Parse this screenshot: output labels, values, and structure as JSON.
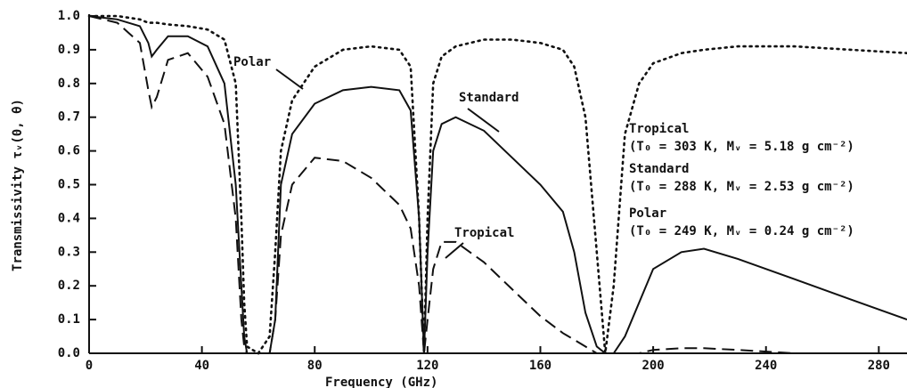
{
  "chart_data": {
    "type": "line",
    "xlabel": "Frequency (GHz)",
    "ylabel": "Transmissivity τᵥ(0, θ)",
    "x": [
      0,
      10,
      18,
      21,
      22.2,
      24,
      28,
      35,
      42,
      48,
      52,
      54,
      55,
      56,
      60,
      64,
      66,
      68,
      72,
      80,
      90,
      100,
      110,
      114,
      117,
      118.75,
      120,
      122,
      125,
      130,
      140,
      150,
      160,
      168,
      172,
      176,
      180,
      183,
      186,
      190,
      195,
      200,
      210,
      218,
      230,
      250,
      270,
      290
    ],
    "series": [
      {
        "name": "Standard",
        "color": "#111111",
        "style": "solid",
        "values": [
          1,
          0.99,
          0.97,
          0.92,
          0.88,
          0.9,
          0.94,
          0.94,
          0.91,
          0.8,
          0.5,
          0.2,
          0.05,
          0,
          0,
          0,
          0.1,
          0.5,
          0.65,
          0.74,
          0.78,
          0.79,
          0.78,
          0.72,
          0.4,
          0,
          0.3,
          0.6,
          0.68,
          0.7,
          0.66,
          0.58,
          0.5,
          0.42,
          0.3,
          0.12,
          0.02,
          0,
          0,
          0.05,
          0.15,
          0.25,
          0.3,
          0.31,
          0.28,
          0.22,
          0.16,
          0.1
        ]
      },
      {
        "name": "Tropical",
        "color": "#111111",
        "style": "dashed",
        "values": [
          1,
          0.98,
          0.92,
          0.78,
          0.73,
          0.76,
          0.87,
          0.89,
          0.82,
          0.68,
          0.4,
          0.1,
          0.02,
          0,
          0,
          0,
          0.1,
          0.35,
          0.5,
          0.58,
          0.57,
          0.52,
          0.44,
          0.37,
          0.2,
          0,
          0.1,
          0.25,
          0.33,
          0.33,
          0.27,
          0.19,
          0.11,
          0.06,
          0.04,
          0.02,
          0,
          0,
          0,
          0,
          0,
          0.01,
          0.015,
          0.015,
          0.01,
          0,
          0,
          0
        ]
      },
      {
        "name": "Polar",
        "color": "#111111",
        "style": "dotted",
        "values": [
          1,
          1,
          0.99,
          0.98,
          0.98,
          0.98,
          0.975,
          0.97,
          0.96,
          0.93,
          0.8,
          0.4,
          0.15,
          0.02,
          0,
          0.05,
          0.3,
          0.6,
          0.75,
          0.85,
          0.9,
          0.91,
          0.9,
          0.85,
          0.4,
          0,
          0.4,
          0.8,
          0.88,
          0.91,
          0.93,
          0.93,
          0.92,
          0.9,
          0.85,
          0.7,
          0.3,
          0,
          0.2,
          0.65,
          0.8,
          0.86,
          0.89,
          0.9,
          0.91,
          0.91,
          0.9,
          0.89
        ]
      }
    ],
    "annotations": [
      "(T₀ = 303 K, Mᵥ = 5.18 g cm⁻²)",
      "(T₀ = 288 K, Mᵥ = 2.53 g cm⁻²)",
      "(T₀ = 249 K, Mᵥ = 0.24 g cm⁻²)"
    ],
    "xlim": [
      0,
      290
    ],
    "xticks": [
      0,
      40,
      80,
      120,
      160,
      200,
      240,
      280
    ],
    "ylim": [
      0,
      1
    ],
    "yticks": [
      {
        "value": 0,
        "label": "0.0"
      },
      0.1,
      0.2,
      0.3,
      0.4,
      0.5,
      0.6,
      0.7,
      0.8,
      0.9,
      {
        "value": 1,
        "label": "1.0"
      }
    ],
    "grid": false
  }
}
